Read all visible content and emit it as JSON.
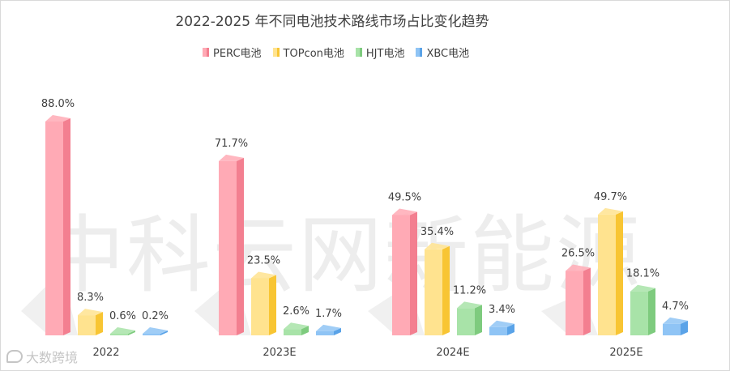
{
  "chart_data": {
    "type": "bar",
    "title": "2022-2025 年不同电池技术路线市场占比变化趋势",
    "categories": [
      "2022",
      "2023E",
      "2024E",
      "2025E"
    ],
    "series": [
      {
        "name": "PERC电池",
        "values": [
          88.0,
          71.7,
          49.5,
          26.5
        ],
        "labels": [
          "88.0%",
          "71.7%",
          "49.5%",
          "26.5%"
        ],
        "color": "#ffaab5",
        "shade": "#f37f90"
      },
      {
        "name": "TOPcon电池",
        "values": [
          8.3,
          23.5,
          35.4,
          49.7
        ],
        "labels": [
          "8.3%",
          "23.5%",
          "35.4%",
          "49.7%"
        ],
        "color": "#ffe38f",
        "shade": "#f8c533"
      },
      {
        "name": "HJT电池",
        "values": [
          0.6,
          2.6,
          11.2,
          18.1
        ],
        "labels": [
          "0.6%",
          "2.6%",
          "11.2%",
          "18.1%"
        ],
        "color": "#a8e3a8",
        "shade": "#7ecb7e"
      },
      {
        "name": "XBC电池",
        "values": [
          0.2,
          1.7,
          3.4,
          4.7
        ],
        "labels": [
          "0.2%",
          "1.7%",
          "3.4%",
          "4.7%"
        ],
        "color": "#8fc4f5",
        "shade": "#5aa3e8"
      }
    ],
    "ylim": [
      0,
      88
    ],
    "legend": "top",
    "grid": false,
    "xlabel": "",
    "ylabel": ""
  },
  "watermark": "中科云网新能源",
  "brand": "大数跨境"
}
